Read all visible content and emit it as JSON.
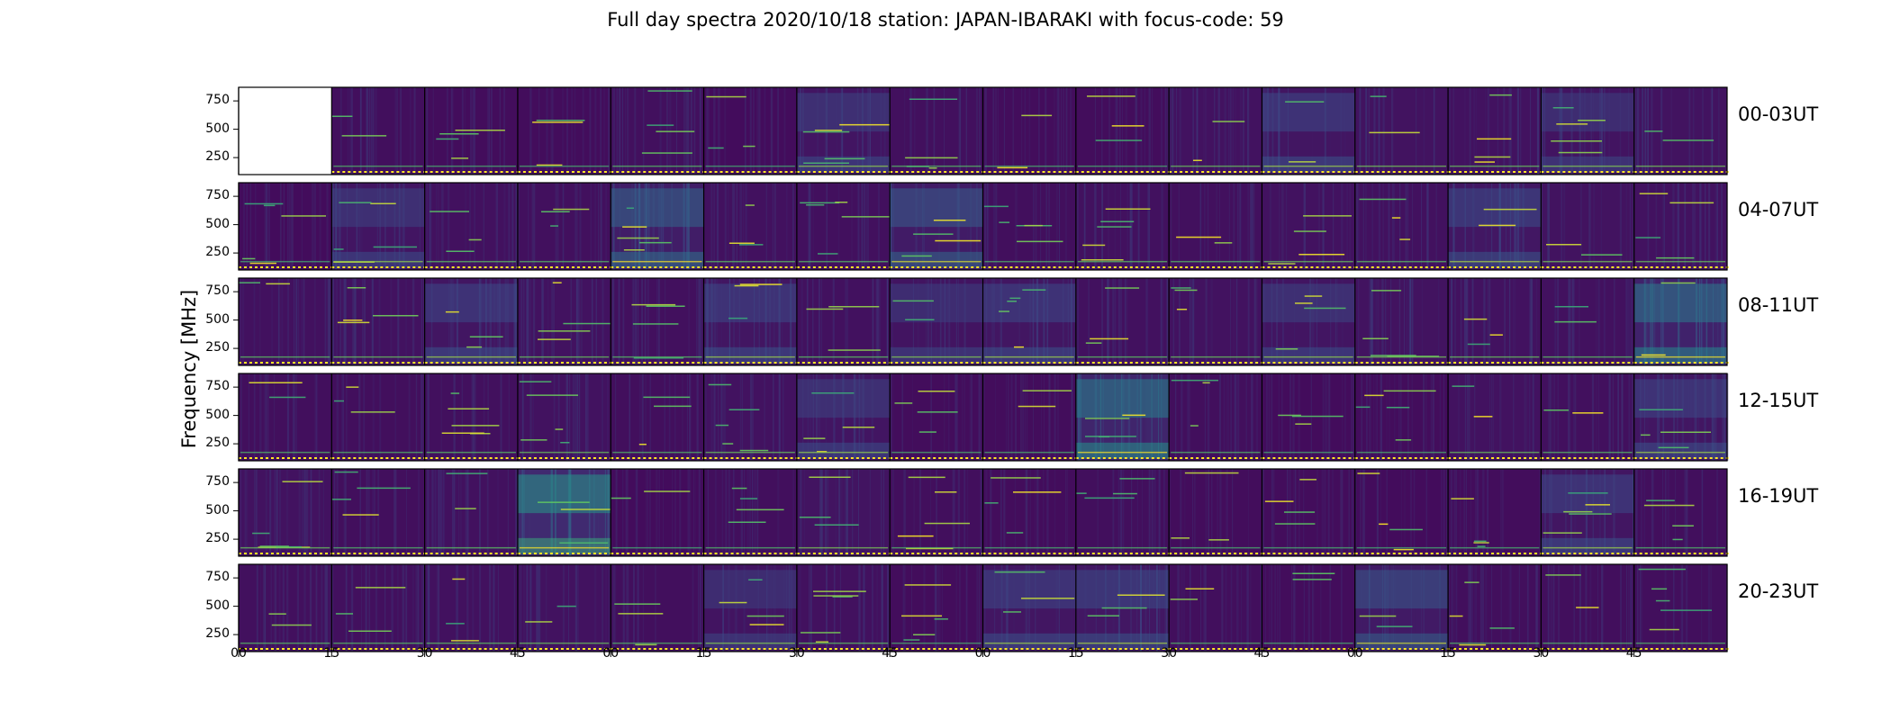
{
  "chart_data": {
    "type": "heatmap",
    "title": "Full day spectra 2020/10/18 station: JAPAN-IBARAKI with focus-code: 59",
    "ylabel": "Frequency [MHz]",
    "yticks": [
      "750",
      "500",
      "250"
    ],
    "ylim": [
      100,
      870
    ],
    "xticks": [
      "00",
      "15",
      "30",
      "45",
      "00",
      "15",
      "30",
      "45",
      "00",
      "15",
      "30",
      "45",
      "00",
      "15",
      "30",
      "45"
    ],
    "colormap": "viridis",
    "colors": {
      "low": "#440154",
      "mid": "#21918c",
      "high": "#fde725"
    },
    "rows": [
      {
        "label": "00-03UT",
        "missing_panels": [
          0
        ],
        "intensity": [
          0,
          0.15,
          0.12,
          0.12,
          0.18,
          0.1,
          0.28,
          0.18,
          0.12,
          0.12,
          0.22,
          0.3,
          0.24,
          0.22,
          0.26,
          0.24
        ]
      },
      {
        "label": "04-07UT",
        "missing_panels": [],
        "intensity": [
          0.1,
          0.28,
          0.2,
          0.18,
          0.45,
          0.2,
          0.18,
          0.4,
          0.15,
          0.2,
          0.18,
          0.22,
          0.2,
          0.32,
          0.24,
          0.22
        ]
      },
      {
        "label": "08-11UT",
        "missing_panels": [],
        "intensity": [
          0.2,
          0.22,
          0.3,
          0.22,
          0.18,
          0.3,
          0.2,
          0.26,
          0.3,
          0.2,
          0.22,
          0.28,
          0.24,
          0.22,
          0.2,
          0.55
        ]
      },
      {
        "label": "12-15UT",
        "missing_panels": [],
        "intensity": [
          0.15,
          0.15,
          0.18,
          0.22,
          0.15,
          0.22,
          0.28,
          0.12,
          0.12,
          0.6,
          0.15,
          0.1,
          0.12,
          0.22,
          0.18,
          0.3
        ]
      },
      {
        "label": "16-19UT",
        "missing_panels": [],
        "intensity": [
          0.22,
          0.15,
          0.2,
          0.7,
          0.1,
          0.15,
          0.25,
          0.15,
          0.12,
          0.15,
          0.12,
          0.12,
          0.1,
          0.12,
          0.3,
          0.15
        ]
      },
      {
        "label": "20-23UT",
        "missing_panels": [],
        "intensity": [
          0.18,
          0.18,
          0.2,
          0.22,
          0.15,
          0.26,
          0.2,
          0.12,
          0.3,
          0.32,
          0.15,
          0.12,
          0.38,
          0.15,
          0.15,
          0.15
        ]
      }
    ]
  }
}
